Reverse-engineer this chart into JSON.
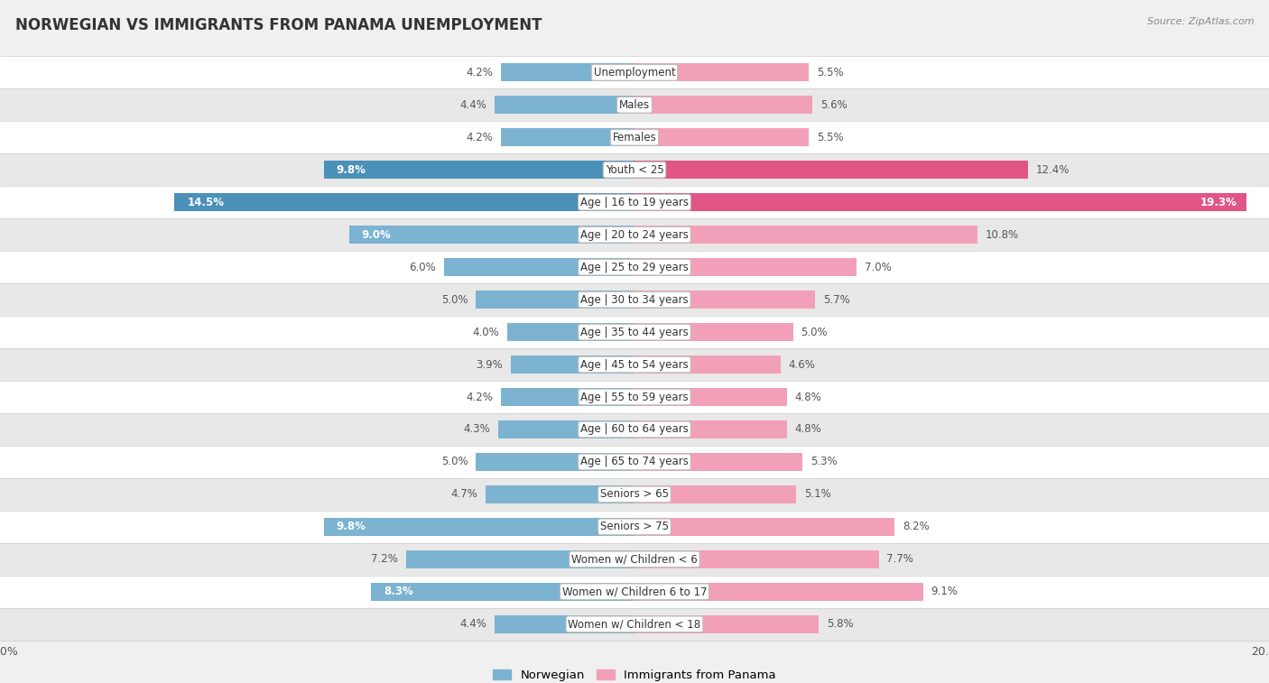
{
  "title": "NORWEGIAN VS IMMIGRANTS FROM PANAMA UNEMPLOYMENT",
  "source": "Source: ZipAtlas.com",
  "categories": [
    "Unemployment",
    "Males",
    "Females",
    "Youth < 25",
    "Age | 16 to 19 years",
    "Age | 20 to 24 years",
    "Age | 25 to 29 years",
    "Age | 30 to 34 years",
    "Age | 35 to 44 years",
    "Age | 45 to 54 years",
    "Age | 55 to 59 years",
    "Age | 60 to 64 years",
    "Age | 65 to 74 years",
    "Seniors > 65",
    "Seniors > 75",
    "Women w/ Children < 6",
    "Women w/ Children 6 to 17",
    "Women w/ Children < 18"
  ],
  "norwegian": [
    4.2,
    4.4,
    4.2,
    9.8,
    14.5,
    9.0,
    6.0,
    5.0,
    4.0,
    3.9,
    4.2,
    4.3,
    5.0,
    4.7,
    9.8,
    7.2,
    8.3,
    4.4
  ],
  "immigrants": [
    5.5,
    5.6,
    5.5,
    12.4,
    19.3,
    10.8,
    7.0,
    5.7,
    5.0,
    4.6,
    4.8,
    4.8,
    5.3,
    5.1,
    8.2,
    7.7,
    9.1,
    5.8
  ],
  "norwegian_color": "#7bb3d1",
  "norwegian_color_highlight": "#4a90b8",
  "immigrants_color": "#f2a0b8",
  "immigrants_color_highlight": "#e05585",
  "max_value": 20.0,
  "legend_norwegian": "Norwegian",
  "legend_immigrants": "Immigrants from Panama",
  "background_color": "#f0f0f0",
  "row_bg_odd": "#ffffff",
  "row_bg_even": "#e8e8e8",
  "highlight_rows": [
    3,
    4
  ],
  "label_inside_threshold_norw": 8.0,
  "label_inside_threshold_immig": 8.0
}
